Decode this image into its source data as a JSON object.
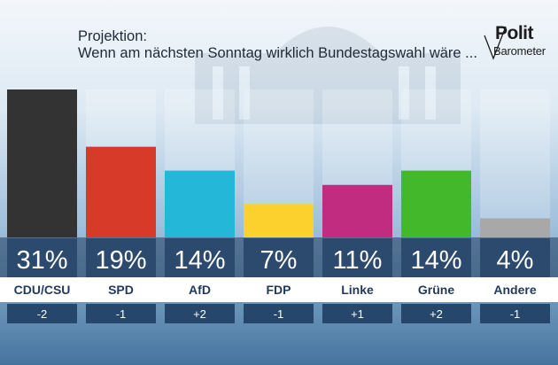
{
  "header": {
    "line1": "Projektion:",
    "line2": "Wenn am nächsten Sonntag wirklich Bundestagswahl wäre ..."
  },
  "logo": {
    "top": "Polit",
    "bottom": "Barometer"
  },
  "colors": {
    "value_cell": "#2c4a6e",
    "change_cell": "#27466b",
    "label_text": "#1f3a5c"
  },
  "chart_data": {
    "type": "bar",
    "ylim": [
      0,
      31
    ],
    "categories": [
      "CDU/CSU",
      "SPD",
      "AfD",
      "FDP",
      "Linke",
      "Grüne",
      "Andere"
    ],
    "values": [
      31,
      19,
      14,
      7,
      11,
      14,
      4
    ],
    "value_labels": [
      "31%",
      "19%",
      "14%",
      "7%",
      "11%",
      "14%",
      "4%"
    ],
    "changes": [
      "-2",
      "-1",
      "+2",
      "-1",
      "+1",
      "+2",
      "-1"
    ],
    "bar_colors": [
      "#333333",
      "#d83a2a",
      "#24b7d8",
      "#fdd12d",
      "#c22c80",
      "#44b82b",
      "#a8a8a8"
    ]
  }
}
